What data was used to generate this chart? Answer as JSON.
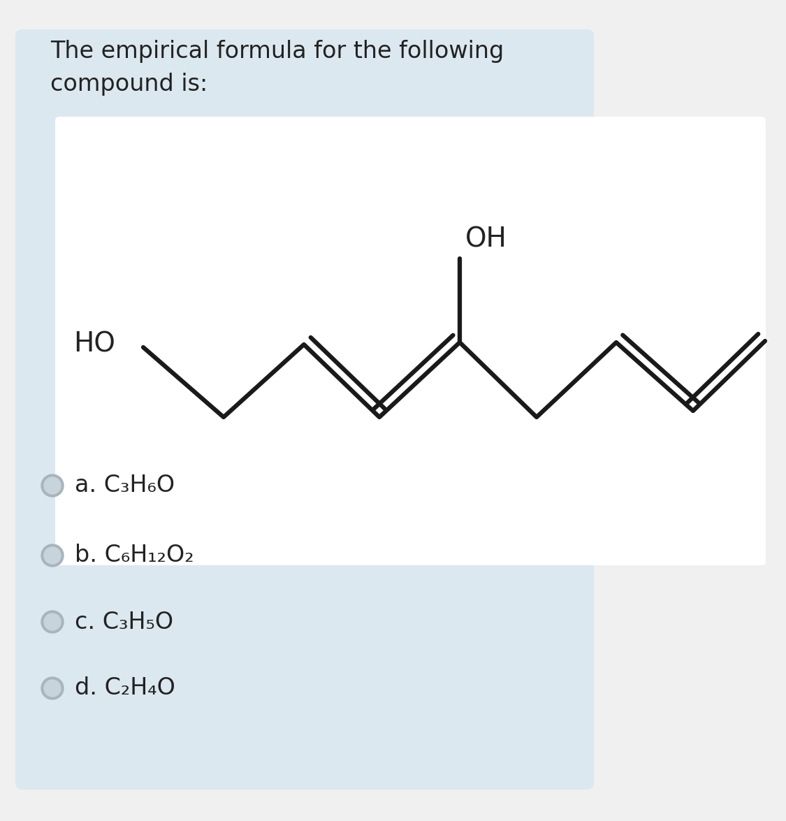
{
  "title_line1": "The empirical formula for the following",
  "title_line2": "compound is:",
  "bg_color": "#f0f0f0",
  "card_color": "#dce8f0",
  "molecule_bg": "#ffffff",
  "line_color": "#1a1a1a",
  "text_color": "#222222",
  "radio_border": "#aab4bc",
  "radio_fill": "#c8d4dc",
  "choices": [
    {
      "label": "a.",
      "formula": "C₃H₆O"
    },
    {
      "label": "b.",
      "formula": "C₆H₁₂O₂"
    },
    {
      "label": "c.",
      "formula": "C₃H₅O"
    },
    {
      "label": "d.",
      "formula": "C₂H₄O"
    }
  ]
}
